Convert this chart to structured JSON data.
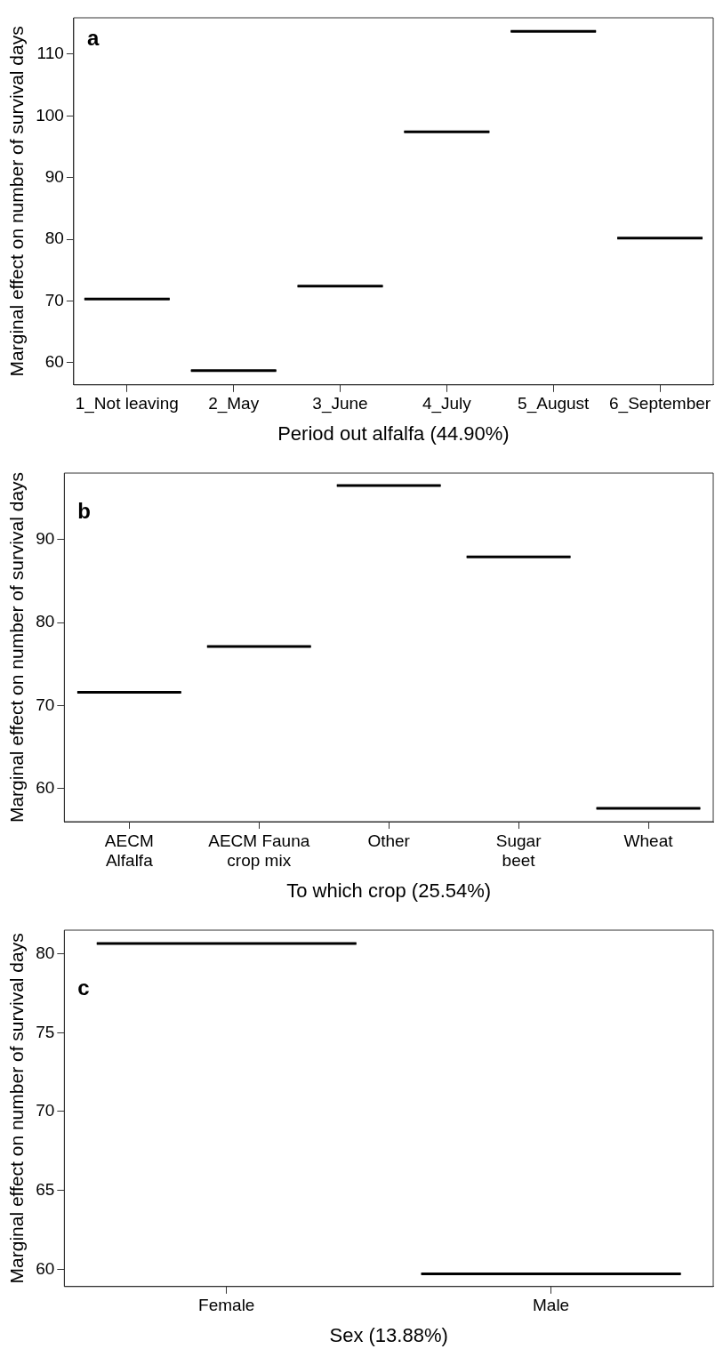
{
  "chart_data": [
    {
      "type": "box",
      "annotations": [
        "a"
      ],
      "xlabel": "Period out alfalfa (44.90%)",
      "ylabel": "Marginal effect on number of survival days",
      "categories": [
        "1_Not leaving",
        "2_May",
        "3_June",
        "4_July",
        "5_August",
        "6_September"
      ],
      "boxes": [
        {
          "low": 70.3,
          "q1": 70.3,
          "median": 70.3,
          "q3": 70.3,
          "high": 70.3
        },
        {
          "low": 58.7,
          "q1": 58.7,
          "median": 58.7,
          "q3": 58.7,
          "high": 58.7
        },
        {
          "low": 72.4,
          "q1": 72.4,
          "median": 72.4,
          "q3": 72.4,
          "high": 72.4
        },
        {
          "low": 97.4,
          "q1": 97.4,
          "median": 97.4,
          "q3": 97.4,
          "high": 97.4
        },
        {
          "low": 113.7,
          "q1": 113.7,
          "median": 113.7,
          "q3": 113.7,
          "high": 113.7
        },
        {
          "low": 80.2,
          "q1": 80.2,
          "median": 80.2,
          "q3": 80.2,
          "high": 80.2
        }
      ],
      "color": "#000000",
      "ylim": [
        56.4,
        115.9
      ],
      "yticks": [
        60,
        70,
        80,
        90,
        100,
        110
      ],
      "grid": false
    },
    {
      "type": "box",
      "annotations": [
        "b"
      ],
      "xlabel": "To which crop (25.54%)",
      "ylabel": "Marginal effect on number of survival days",
      "categories": [
        "AECM\nAlfalfa",
        "AECM Fauna\ncrop mix",
        "Other",
        "Sugar\nbeet",
        "Wheat"
      ],
      "boxes": [
        {
          "low": 71.6,
          "q1": 71.6,
          "median": 71.6,
          "q3": 71.6,
          "high": 71.6
        },
        {
          "low": 77.1,
          "q1": 77.1,
          "median": 77.1,
          "q3": 77.1,
          "high": 77.1
        },
        {
          "low": 96.5,
          "q1": 96.5,
          "median": 96.5,
          "q3": 96.5,
          "high": 96.5
        },
        {
          "low": 87.9,
          "q1": 87.9,
          "median": 87.9,
          "q3": 87.9,
          "high": 87.9
        },
        {
          "low": 57.6,
          "q1": 57.6,
          "median": 57.6,
          "q3": 57.6,
          "high": 57.6
        }
      ],
      "color": "#000000",
      "ylim": [
        56.0,
        98.0
      ],
      "yticks": [
        60,
        70,
        80,
        90
      ],
      "grid": false
    },
    {
      "type": "box",
      "annotations": [
        "c"
      ],
      "xlabel": "Sex (13.88%)",
      "ylabel": "Marginal effect on number of survival days",
      "categories": [
        "Female",
        "Male"
      ],
      "boxes": [
        {
          "low": 80.66,
          "q1": 80.66,
          "median": 80.66,
          "q3": 80.66,
          "high": 80.66
        },
        {
          "low": 59.7,
          "q1": 59.7,
          "median": 59.7,
          "q3": 59.7,
          "high": 59.7
        }
      ],
      "color": "#000000",
      "ylim": [
        58.9,
        81.5
      ],
      "yticks": [
        60,
        65,
        70,
        75,
        80
      ],
      "grid": false
    }
  ]
}
